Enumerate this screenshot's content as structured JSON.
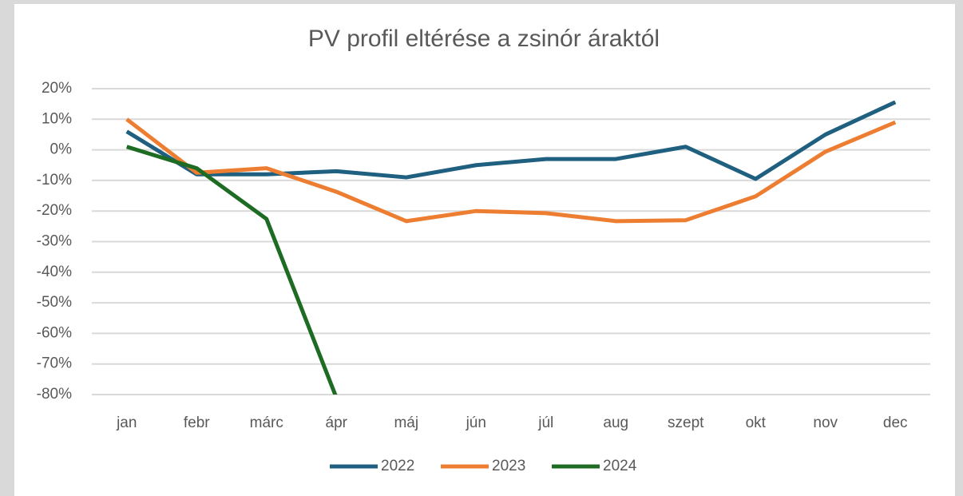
{
  "chart_data": {
    "type": "line",
    "title": "PV profil eltérése a zsinór áraktól",
    "categories": [
      "jan",
      "febr",
      "márc",
      "ápr",
      "máj",
      "jún",
      "júl",
      "aug",
      "szept",
      "okt",
      "nov",
      "dec"
    ],
    "series": [
      {
        "name": "2022",
        "color": "#1f5f7f",
        "values": [
          6,
          -8,
          -8,
          -7,
          -9,
          -5,
          -3,
          -3,
          1,
          -9.5,
          5,
          15.6
        ]
      },
      {
        "name": "2023",
        "color": "#ed7d31",
        "values": [
          10,
          -7.5,
          -6,
          -13.7,
          -23.3,
          -20,
          -20.7,
          -23.3,
          -23,
          -15.2,
          -0.6,
          9
        ]
      },
      {
        "name": "2024",
        "color": "#1e6b24",
        "values": [
          1,
          -6,
          -22.6,
          -81,
          null,
          null,
          null,
          null,
          null,
          null,
          null,
          null
        ]
      }
    ],
    "ylim": [
      -80,
      20
    ],
    "yticks": [
      {
        "value": -80,
        "label": "-80%"
      },
      {
        "value": -70,
        "label": "-70%"
      },
      {
        "value": -60,
        "label": "-60%"
      },
      {
        "value": -50,
        "label": "-50%"
      },
      {
        "value": -40,
        "label": "-40%"
      },
      {
        "value": -30,
        "label": "-30%"
      },
      {
        "value": -20,
        "label": "-20%"
      },
      {
        "value": -10,
        "label": "-10%"
      },
      {
        "value": 0,
        "label": "0%"
      },
      {
        "value": 10,
        "label": "10%"
      },
      {
        "value": 20,
        "label": "20%"
      }
    ],
    "grid": true,
    "legend": "bottom"
  }
}
